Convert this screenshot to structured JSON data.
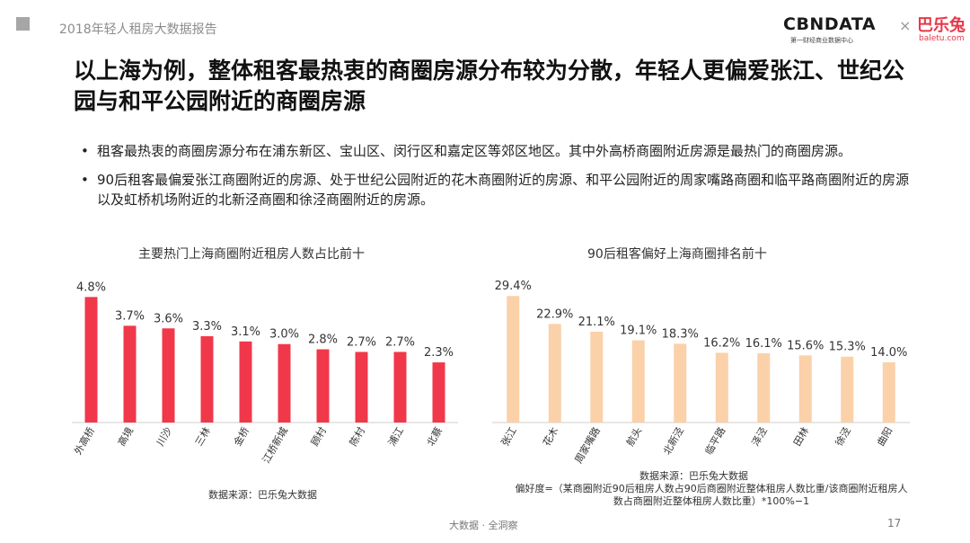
{
  "header": {
    "report_title": "2018年轻人租房大数据报告",
    "logo_cbndata": "CBNDATA",
    "logo_cbndata_sub": "第一财经商业数据中心",
    "logo_sep": "×",
    "logo_baletu": "巴乐兔",
    "logo_baletu_sub": "baletu.com"
  },
  "title": "以上海为例，整体租客最热衷的商圈房源分布较为分散，年轻人更偏爱张江、世纪公园与和平公园附近的商圈房源",
  "bullets": [
    "租客最热衷的商圈房源分布在浦东新区、宝山区、闵行区和嘉定区等郊区地区。其中外高桥商圈附近房源是最热门的商圈房源。",
    "90后租客最偏爱张江商圈附近的房源、处于世纪公园附近的花木商圈附近的房源、和平公园附近的周家嘴路商圈和临平路商圈附近的房源以及虹桥机场附近的北新泾商圈和徐泾商圈附近的房源。"
  ],
  "chart_data": [
    {
      "type": "bar",
      "title": "主要热门上海商圈附近租房人数占比前十",
      "categories": [
        "外高桥",
        "高境",
        "川沙",
        "三林",
        "金桥",
        "江桥新城",
        "顾村",
        "陈村",
        "浦江",
        "北蔡"
      ],
      "values": [
        4.8,
        3.7,
        3.6,
        3.3,
        3.1,
        3.0,
        2.8,
        2.7,
        2.7,
        2.3
      ],
      "data_labels": [
        "4.8%",
        "3.7%",
        "3.6%",
        "3.3%",
        "3.1%",
        "3.0%",
        "2.8%",
        "2.7%",
        "2.7%",
        "2.3%"
      ],
      "unit": "%",
      "ylim": [
        0,
        5.5
      ],
      "color": "#f0384a",
      "source": "数据来源：巴乐兔大数据"
    },
    {
      "type": "bar",
      "title": "90后租客偏好上海商圈排名前十",
      "categories": [
        "张江",
        "花木",
        "周家嘴路",
        "航头",
        "北新泾",
        "临平路",
        "泽泾",
        "田林",
        "徐泾",
        "曲阳"
      ],
      "values": [
        29.4,
        22.9,
        21.1,
        19.1,
        18.3,
        16.2,
        16.1,
        15.6,
        15.3,
        14.0
      ],
      "data_labels": [
        "29.4%",
        "22.9%",
        "21.1%",
        "19.1%",
        "18.3%",
        "16.2%",
        "16.1%",
        "15.6%",
        "15.3%",
        "14.0%"
      ],
      "unit": "%",
      "ylim": [
        0,
        33
      ],
      "color": "#fbd1a9",
      "source": "数据来源：巴乐兔大数据",
      "note": "偏好度=（某商圈附近90后租房人数占90后商圈附近整体租房人数比重/该商圈附近租房人数占商圈附近整体租房人数比重）*100%−1"
    }
  ],
  "footer": {
    "center": "大数据 · 全洞察",
    "page": "17"
  }
}
